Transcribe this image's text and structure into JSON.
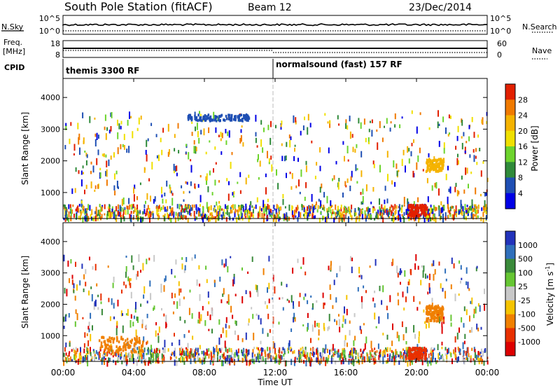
{
  "header": {
    "title": "South Pole Station (fitACF)",
    "beam": "Beam 12",
    "date": "23/Dec/2014"
  },
  "nsky_panel": {
    "left_label": "N.Sky",
    "left_ticks": [
      "10^5",
      "10^0"
    ],
    "right_label": "N.Search",
    "right_ticks": [
      "10^5",
      "10^0"
    ]
  },
  "freq_panel": {
    "left_label_1": "Freq.",
    "left_label_2": "[MHz]",
    "left_ticks": [
      "18",
      "8"
    ],
    "right_label": "Nave",
    "right_ticks": [
      "60",
      "0"
    ]
  },
  "cpid_panel": {
    "label": "CPID",
    "programs": [
      {
        "name": "themis 3300 RF",
        "start_hour": 0
      },
      {
        "name": "normalsound (fast) 157 RF",
        "start_hour": 12
      }
    ]
  },
  "colors": {
    "power_scale": [
      "#0000e6",
      "#1f4fb4",
      "#2f8a3a",
      "#6dd42d",
      "#f0e000",
      "#f5b300",
      "#f07a00",
      "#e22000"
    ],
    "velocity_scale": [
      "#2233bb",
      "#2f6fbb",
      "#3a8a3a",
      "#66c633",
      "#c8c8c8",
      "#f5c400",
      "#f08000",
      "#e83000",
      "#dd0000"
    ]
  },
  "chart_data": [
    {
      "type": "heatmap",
      "panel": "power",
      "ylabel": "Slant Range [km]",
      "yticks": [
        "1000",
        "2000",
        "3000",
        "4000"
      ],
      "ylim": [
        180,
        4600
      ],
      "xlim_hours": [
        0,
        24
      ],
      "colorbar_label": "Power [dB]",
      "colorbar_ticks": [
        "4",
        "8",
        "12",
        "16",
        "20",
        "24",
        "28"
      ],
      "features": [
        {
          "time_range": [
            "00:00",
            "24:00"
          ],
          "range_km": [
            180,
            600
          ],
          "description": "ground scatter band near first range gates"
        },
        {
          "time_range": [
            "19:30",
            "20:30"
          ],
          "range_km": [
            300,
            650
          ],
          "power_db": 28
        },
        {
          "time_range": [
            "07:00",
            "10:30"
          ],
          "range_km": [
            3300,
            3500
          ],
          "power_db": 6
        },
        {
          "time_range": [
            "20:30",
            "21:30"
          ],
          "range_km": [
            1700,
            2100
          ],
          "power_db": 20
        }
      ]
    },
    {
      "type": "heatmap",
      "panel": "velocity",
      "ylabel": "Slant Range [km]",
      "yticks": [
        "1000",
        "2000",
        "3000",
        "4000"
      ],
      "ylim": [
        180,
        4600
      ],
      "xlim_hours": [
        0,
        24
      ],
      "colorbar_label": "Velocity [m s",
      "colorbar_label_sup": "-1",
      "colorbar_label_end": "]",
      "colorbar_ticks": [
        "1000",
        "500",
        "100",
        "25",
        "-25",
        "-100",
        "-500",
        "-1000"
      ],
      "features": [
        {
          "time_range": [
            "19:30",
            "20:30"
          ],
          "range_km": [
            300,
            650
          ],
          "velocity_ms": -800
        },
        {
          "time_range": [
            "02:00",
            "04:30"
          ],
          "range_km": [
            500,
            1000
          ],
          "velocity_ms": -300
        },
        {
          "time_range": [
            "20:30",
            "21:30"
          ],
          "range_km": [
            1500,
            2000
          ],
          "velocity_ms": -300
        }
      ]
    }
  ],
  "x_axis": {
    "label": "Time UT",
    "ticks": [
      "00:00",
      "04:00",
      "08:00",
      "12:00",
      "16:00",
      "20:00",
      "00:00"
    ]
  }
}
